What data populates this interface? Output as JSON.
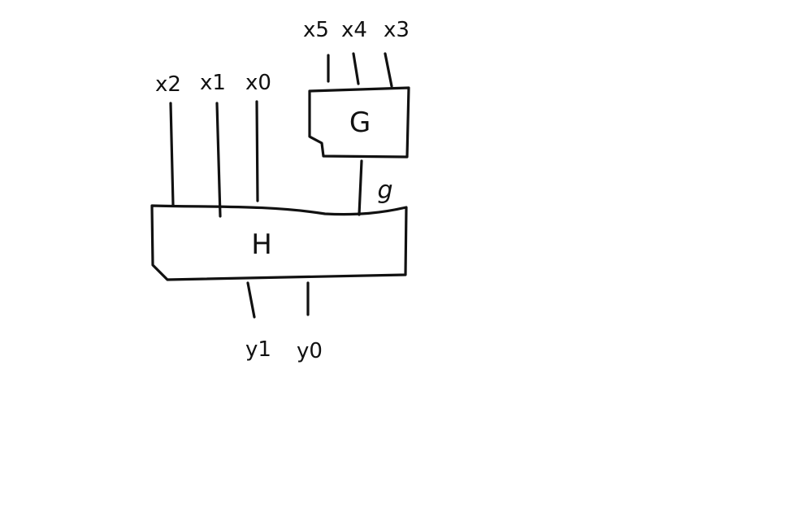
{
  "diagram": {
    "blocks": {
      "g_block": {
        "label": "G"
      },
      "h_block": {
        "label": "H"
      }
    },
    "g_inputs": [
      "x5",
      "x4",
      "x3"
    ],
    "h_inputs": [
      "x2",
      "x1",
      "x0"
    ],
    "intermediate_signal": "g",
    "outputs": [
      "y1",
      "y0"
    ],
    "edges": [
      {
        "from": "x5",
        "to": "G"
      },
      {
        "from": "x4",
        "to": "G"
      },
      {
        "from": "x3",
        "to": "G"
      },
      {
        "from": "G",
        "to": "H",
        "label": "g"
      },
      {
        "from": "x2",
        "to": "H"
      },
      {
        "from": "x1",
        "to": "H"
      },
      {
        "from": "x0",
        "to": "H"
      },
      {
        "from": "H",
        "to": "y1"
      },
      {
        "from": "H",
        "to": "y0"
      }
    ],
    "colors": {
      "ink": "#111111",
      "background": "#ffffff"
    }
  }
}
